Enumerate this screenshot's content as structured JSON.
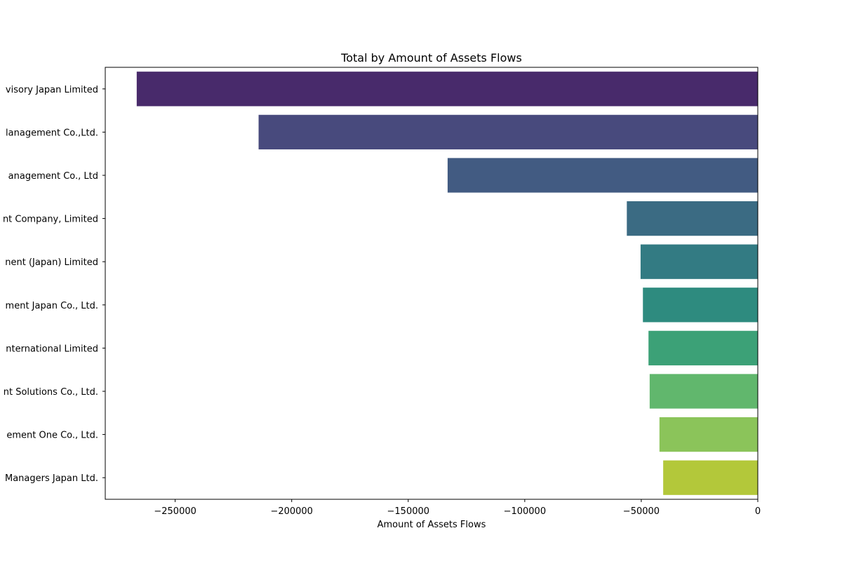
{
  "chart_data": {
    "type": "bar",
    "orientation": "horizontal",
    "title": "Total by Amount of Assets Flows",
    "xlabel": "Amount of Assets Flows",
    "ylabel": "",
    "xlim": [
      -280000,
      0
    ],
    "xticks": [
      -250000,
      -200000,
      -150000,
      -100000,
      -50000,
      0
    ],
    "xtick_labels": [
      "−250000",
      "−200000",
      "−150000",
      "−100000",
      "−50000",
      "0"
    ],
    "grid": false,
    "categories": [
      "visory Japan Limited",
      "lanagement Co.,Ltd.",
      "anagement Co., Ltd ",
      "nt Company, Limited",
      "nent (Japan) Limited ",
      "ment Japan Co., Ltd.",
      "nternational Limited",
      "nt Solutions Co., Ltd.",
      "ement One Co., Ltd. ",
      "Managers Japan Ltd."
    ],
    "values": [
      -266500,
      -214200,
      -133100,
      -56200,
      -50300,
      -49300,
      -46900,
      -46400,
      -42200,
      -40600
    ],
    "colors": [
      "#482a6b",
      "#484a7d",
      "#425b82",
      "#3b6b83",
      "#337b83",
      "#2e8b7f",
      "#3ca177",
      "#61b76d",
      "#8bc45a",
      "#b3c83a"
    ]
  }
}
